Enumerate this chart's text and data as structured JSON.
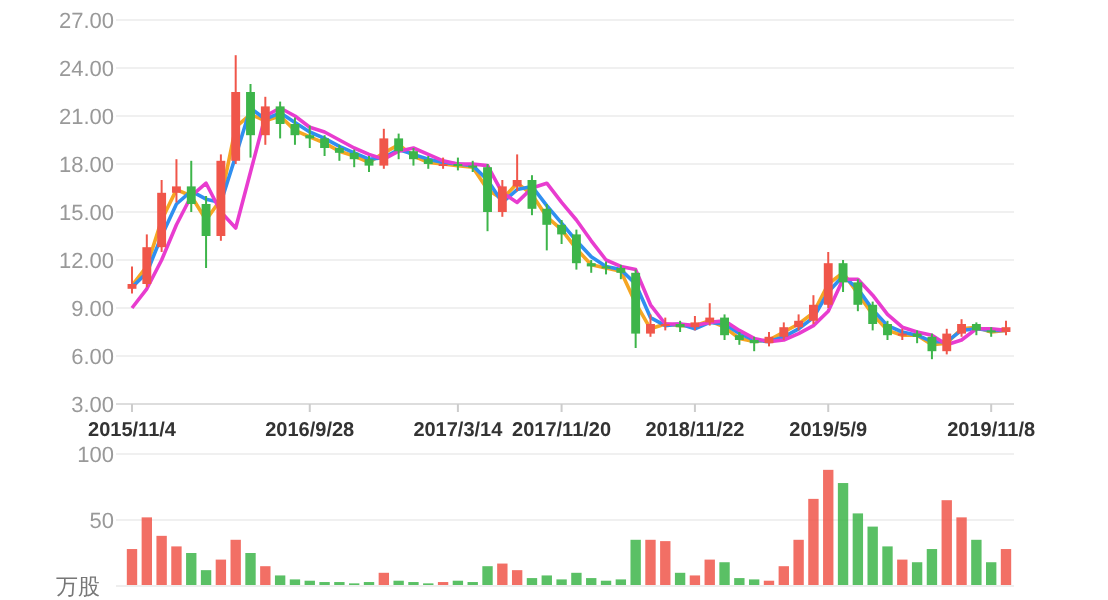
{
  "chart_data": [
    {
      "type": "candlestick",
      "categories": [
        "2015/11/4",
        null,
        null,
        null,
        null,
        null,
        null,
        null,
        null,
        null,
        null,
        null,
        "2016/9/28",
        null,
        null,
        null,
        null,
        null,
        null,
        null,
        null,
        null,
        "2017/3/14",
        null,
        null,
        null,
        null,
        null,
        null,
        "2017/11/20",
        null,
        null,
        null,
        null,
        null,
        null,
        null,
        null,
        "2018/11/22",
        null,
        null,
        null,
        null,
        null,
        null,
        null,
        null,
        "2019/5/9",
        null,
        null,
        null,
        null,
        null,
        null,
        null,
        null,
        null,
        null,
        "2019/11/8",
        null
      ],
      "ohlc": [
        [
          10.2,
          11.6,
          9.9,
          10.5
        ],
        [
          10.5,
          13.6,
          10.3,
          12.8
        ],
        [
          12.8,
          17.0,
          12.5,
          16.2
        ],
        [
          16.2,
          18.3,
          15.6,
          16.6
        ],
        [
          16.6,
          18.2,
          15.0,
          15.5
        ],
        [
          15.5,
          16.0,
          11.5,
          13.5
        ],
        [
          13.5,
          18.6,
          13.2,
          18.2
        ],
        [
          18.2,
          24.8,
          18.0,
          22.5
        ],
        [
          22.5,
          23.0,
          18.4,
          19.8
        ],
        [
          19.8,
          22.2,
          19.2,
          21.6
        ],
        [
          21.6,
          21.9,
          19.6,
          20.5
        ],
        [
          20.5,
          20.9,
          19.2,
          19.8
        ],
        [
          19.8,
          20.4,
          19.0,
          19.6
        ],
        [
          19.6,
          19.8,
          18.5,
          19.0
        ],
        [
          19.0,
          19.2,
          18.2,
          18.7
        ],
        [
          18.7,
          18.9,
          17.8,
          18.3
        ],
        [
          18.3,
          18.5,
          17.5,
          17.9
        ],
        [
          17.9,
          20.2,
          17.7,
          19.6
        ],
        [
          19.6,
          19.9,
          18.3,
          18.8
        ],
        [
          18.8,
          19.0,
          17.9,
          18.3
        ],
        [
          18.3,
          18.5,
          17.7,
          18.0
        ],
        [
          18.0,
          18.4,
          17.7,
          18.0
        ],
        [
          18.0,
          18.4,
          17.6,
          17.9
        ],
        [
          17.9,
          18.2,
          17.5,
          17.8
        ],
        [
          17.8,
          18.0,
          13.8,
          15.0
        ],
        [
          15.0,
          17.0,
          14.7,
          16.6
        ],
        [
          16.6,
          18.6,
          16.3,
          17.0
        ],
        [
          17.0,
          17.3,
          14.8,
          15.2
        ],
        [
          15.2,
          15.5,
          12.6,
          14.2
        ],
        [
          14.2,
          14.5,
          13.0,
          13.6
        ],
        [
          13.6,
          13.9,
          11.4,
          11.8
        ],
        [
          11.8,
          12.0,
          11.2,
          11.6
        ],
        [
          11.6,
          11.9,
          11.1,
          11.5
        ],
        [
          11.5,
          11.7,
          10.8,
          11.2
        ],
        [
          11.2,
          11.4,
          6.5,
          7.4
        ],
        [
          7.4,
          8.6,
          7.2,
          8.0
        ],
        [
          8.0,
          8.4,
          7.6,
          8.0
        ],
        [
          8.0,
          8.2,
          7.5,
          7.8
        ],
        [
          7.8,
          8.5,
          7.6,
          8.1
        ],
        [
          8.1,
          9.3,
          7.9,
          8.4
        ],
        [
          8.4,
          8.6,
          7.0,
          7.3
        ],
        [
          7.3,
          7.5,
          6.7,
          7.0
        ],
        [
          7.0,
          7.2,
          6.3,
          6.8
        ],
        [
          6.8,
          7.5,
          6.6,
          7.2
        ],
        [
          7.2,
          8.1,
          7.0,
          7.8
        ],
        [
          7.8,
          8.6,
          7.6,
          8.2
        ],
        [
          8.2,
          9.8,
          8.0,
          9.2
        ],
        [
          9.2,
          12.5,
          9.0,
          11.8
        ],
        [
          11.8,
          12.0,
          10.0,
          10.6
        ],
        [
          10.6,
          10.8,
          8.8,
          9.2
        ],
        [
          9.2,
          9.4,
          7.6,
          8.0
        ],
        [
          8.0,
          8.2,
          7.0,
          7.3
        ],
        [
          7.3,
          7.7,
          7.0,
          7.4
        ],
        [
          7.4,
          7.6,
          6.8,
          7.2
        ],
        [
          7.2,
          7.4,
          5.8,
          6.3
        ],
        [
          6.3,
          7.7,
          6.1,
          7.4
        ],
        [
          7.4,
          8.3,
          7.2,
          8.0
        ],
        [
          8.0,
          8.1,
          7.3,
          7.6
        ],
        [
          7.6,
          7.8,
          7.2,
          7.5
        ],
        [
          7.5,
          8.2,
          7.3,
          7.8
        ]
      ],
      "colors": [
        "#f0564a",
        "#f0564a",
        "#f0564a",
        "#f0564a",
        "#3db54a",
        "#3db54a",
        "#f0564a",
        "#f0564a",
        "#3db54a",
        "#f0564a",
        "#3db54a",
        "#3db54a",
        "#3db54a",
        "#3db54a",
        "#3db54a",
        "#3db54a",
        "#3db54a",
        "#f0564a",
        "#3db54a",
        "#3db54a",
        "#3db54a",
        "#f0564a",
        "#3db54a",
        "#3db54a",
        "#3db54a",
        "#f0564a",
        "#f0564a",
        "#3db54a",
        "#3db54a",
        "#3db54a",
        "#3db54a",
        "#3db54a",
        "#3db54a",
        "#3db54a",
        "#3db54a",
        "#f0564a",
        "#f0564a",
        "#3db54a",
        "#f0564a",
        "#f0564a",
        "#3db54a",
        "#3db54a",
        "#3db54a",
        "#f0564a",
        "#f0564a",
        "#f0564a",
        "#f0564a",
        "#f0564a",
        "#3db54a",
        "#3db54a",
        "#3db54a",
        "#3db54a",
        "#f0564a",
        "#3db54a",
        "#3db54a",
        "#f0564a",
        "#f0564a",
        "#3db54a",
        "#3db54a",
        "#f0564a"
      ],
      "series": [
        {
          "type": "line",
          "color": "#f5a623",
          "values": [
            10.4,
            11.6,
            14.5,
            16.4,
            16.0,
            14.5,
            15.8,
            20.3,
            21.1,
            20.7,
            21.0,
            20.1,
            19.7,
            19.3,
            18.8,
            18.5,
            18.1,
            18.7,
            19.2,
            18.5,
            18.1,
            18.0,
            17.9,
            17.8,
            16.4,
            15.8,
            16.8,
            16.1,
            14.7,
            13.9,
            12.7,
            11.7,
            11.5,
            11.3,
            9.3,
            7.7,
            8.0,
            7.9,
            7.9,
            8.2,
            7.8,
            7.1,
            6.9,
            7.0,
            7.5,
            8.0,
            8.7,
            10.5,
            11.2,
            9.9,
            8.6,
            7.6,
            7.3,
            7.3,
            6.7,
            6.8,
            7.7,
            7.8,
            7.5,
            7.6
          ]
        },
        {
          "type": "line",
          "color": "#2f8ff0",
          "values": [
            10.3,
            11.2,
            13.5,
            15.5,
            16.3,
            15.8,
            15.6,
            18.5,
            21.5,
            20.8,
            21.2,
            20.6,
            20.0,
            19.6,
            19.1,
            18.7,
            18.3,
            18.4,
            18.9,
            18.6,
            18.3,
            18.1,
            18.0,
            17.9,
            17.0,
            15.6,
            16.4,
            16.6,
            15.4,
            14.3,
            13.2,
            12.2,
            11.6,
            11.4,
            10.5,
            8.4,
            7.9,
            8.0,
            7.7,
            8.1,
            8.0,
            7.4,
            7.0,
            6.9,
            7.2,
            7.7,
            8.4,
            10.0,
            11.0,
            10.2,
            8.9,
            7.9,
            7.5,
            7.3,
            6.9,
            6.9,
            7.6,
            7.7,
            7.6,
            7.6
          ]
        },
        {
          "type": "line",
          "color": "#e83ccf",
          "values": [
            9.0,
            10.2,
            12.0,
            14.2,
            16.0,
            16.8,
            15.0,
            14.0,
            17.5,
            21.0,
            21.5,
            21.0,
            20.3,
            20.0,
            19.5,
            19.0,
            18.6,
            18.3,
            18.8,
            19.0,
            18.6,
            18.2,
            18.0,
            18.0,
            17.9,
            16.2,
            15.6,
            16.5,
            16.8,
            15.6,
            14.5,
            13.2,
            12.0,
            11.6,
            11.4,
            9.2,
            8.0,
            8.0,
            7.9,
            8.1,
            8.2,
            7.6,
            7.1,
            6.9,
            7.0,
            7.4,
            7.9,
            8.8,
            10.8,
            10.8,
            9.8,
            8.6,
            7.8,
            7.5,
            7.3,
            6.7,
            7.0,
            7.7,
            7.7,
            7.6
          ]
        }
      ],
      "ylim": [
        3,
        27
      ],
      "yticks": [
        {
          "value": 3,
          "label": "3.00"
        },
        {
          "value": 6,
          "label": "6.00"
        },
        {
          "value": 9,
          "label": "9.00"
        },
        {
          "value": 12,
          "label": "12.00"
        },
        {
          "value": 15,
          "label": "15.00"
        },
        {
          "value": 18,
          "label": "18.00"
        },
        {
          "value": 21,
          "label": "21.00"
        },
        {
          "value": 24,
          "label": "24.00"
        },
        {
          "value": 27,
          "label": "27.00"
        }
      ],
      "grid": "y"
    },
    {
      "type": "bar",
      "categories": [
        null,
        null,
        null,
        null,
        null,
        null,
        null,
        null,
        null,
        null,
        null,
        null,
        null,
        null,
        null,
        null,
        null,
        null,
        null,
        null,
        null,
        null,
        null,
        null,
        null,
        null,
        null,
        null,
        null,
        null,
        null,
        null,
        null,
        null,
        null,
        null,
        null,
        null,
        null,
        null,
        null,
        null,
        null,
        null,
        null,
        null,
        null,
        null,
        null,
        null,
        null,
        null,
        null,
        null,
        null,
        null,
        null,
        null,
        null,
        null
      ],
      "values": [
        28,
        52,
        38,
        30,
        25,
        12,
        20,
        35,
        25,
        15,
        8,
        5,
        4,
        3,
        3,
        2,
        3,
        10,
        4,
        3,
        2,
        3,
        4,
        3,
        15,
        17,
        12,
        6,
        8,
        5,
        10,
        6,
        4,
        5,
        35,
        35,
        34,
        10,
        8,
        20,
        18,
        6,
        5,
        4,
        15,
        35,
        66,
        88,
        78,
        55,
        45,
        30,
        20,
        18,
        28,
        65,
        52,
        35,
        18,
        28
      ],
      "colors": [
        "#f0564a",
        "#f0564a",
        "#f0564a",
        "#f0564a",
        "#3db54a",
        "#3db54a",
        "#f0564a",
        "#f0564a",
        "#3db54a",
        "#f0564a",
        "#3db54a",
        "#3db54a",
        "#3db54a",
        "#3db54a",
        "#3db54a",
        "#3db54a",
        "#3db54a",
        "#f0564a",
        "#3db54a",
        "#3db54a",
        "#3db54a",
        "#f0564a",
        "#3db54a",
        "#3db54a",
        "#3db54a",
        "#f0564a",
        "#f0564a",
        "#3db54a",
        "#3db54a",
        "#3db54a",
        "#3db54a",
        "#3db54a",
        "#3db54a",
        "#3db54a",
        "#3db54a",
        "#f0564a",
        "#f0564a",
        "#3db54a",
        "#f0564a",
        "#f0564a",
        "#3db54a",
        "#3db54a",
        "#3db54a",
        "#f0564a",
        "#f0564a",
        "#f0564a",
        "#f0564a",
        "#f0564a",
        "#3db54a",
        "#3db54a",
        "#3db54a",
        "#3db54a",
        "#f0564a",
        "#3db54a",
        "#3db54a",
        "#f0564a",
        "#f0564a",
        "#3db54a",
        "#3db54a",
        "#f0564a"
      ],
      "ylabel": "万股",
      "ylim": [
        0,
        100
      ],
      "yticks": [
        50,
        100
      ],
      "grid": "y"
    }
  ]
}
